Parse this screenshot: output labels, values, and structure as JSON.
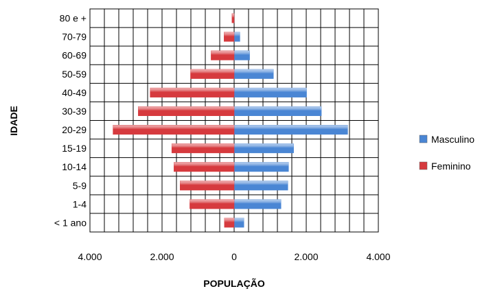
{
  "chart_data": {
    "type": "bar",
    "orientation": "horizontal",
    "title": "",
    "xlabel": "POPULAÇÃO",
    "ylabel": "IDADE",
    "categories": [
      "80 e +",
      "70-79",
      "60-69",
      "50-59",
      "40-49",
      "30-39",
      "20-29",
      "15-19",
      "10-14",
      "5-9",
      "1-4",
      "< 1 ano"
    ],
    "series": [
      {
        "name": "Masculino",
        "color": "#4a86d4",
        "values": [
          0,
          160,
          430,
          1090,
          2010,
          2420,
          3150,
          1650,
          1510,
          1490,
          1300,
          270
        ]
      },
      {
        "name": "Feminino",
        "color": "#d63a3e",
        "values": [
          60,
          280,
          640,
          1210,
          2330,
          2660,
          3360,
          1730,
          1670,
          1500,
          1230,
          270
        ]
      }
    ],
    "xlim": [
      -4000,
      4000
    ],
    "xticks": [
      -4000,
      -2000,
      0,
      2000,
      4000
    ],
    "xtick_labels": [
      "4.000",
      "2.000",
      "0",
      "2.000",
      "4.000"
    ],
    "grid": true,
    "legend": "right"
  }
}
